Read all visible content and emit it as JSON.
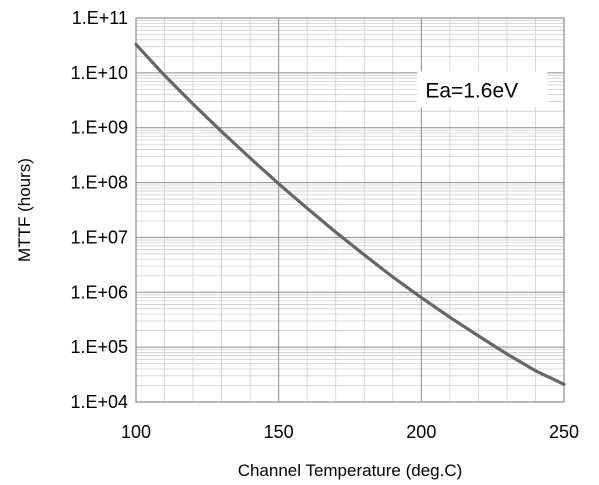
{
  "chart_data": {
    "type": "line",
    "title": "",
    "xlabel": "Channel Temperature (deg.C)",
    "ylabel": "MTTF (hours)",
    "xlim": [
      100,
      250
    ],
    "ylim": [
      10000,
      100000000000
    ],
    "yscale": "log",
    "grid": true,
    "legend": "none",
    "x_ticks": [
      100,
      150,
      200,
      250
    ],
    "x_tick_labels": [
      "100",
      "150",
      "200",
      "250"
    ],
    "y_ticks": [
      10000,
      100000,
      1000000,
      10000000,
      100000000,
      1000000000,
      10000000000,
      100000000000
    ],
    "y_tick_labels": [
      "1.E+04",
      "1.E+05",
      "1.E+06",
      "1.E+07",
      "1.E+08",
      "1.E+09",
      "1.E+10",
      "1.E+11"
    ],
    "series": [
      {
        "x": [
          100,
          110,
          120,
          130,
          140,
          150,
          160,
          170,
          180,
          190,
          200,
          210,
          220,
          230,
          240,
          250
        ],
        "y": [
          33000000000,
          9000000000,
          2700000000,
          850000000,
          280000000,
          95000000,
          34000000,
          12500000,
          4800000,
          1900000,
          800000,
          350000,
          160000,
          75000,
          37000,
          21000
        ],
        "color": "#666666"
      }
    ],
    "annotations": [
      {
        "text": "Ea=1.6eV",
        "x": 200,
        "y": 5000000000
      }
    ]
  }
}
